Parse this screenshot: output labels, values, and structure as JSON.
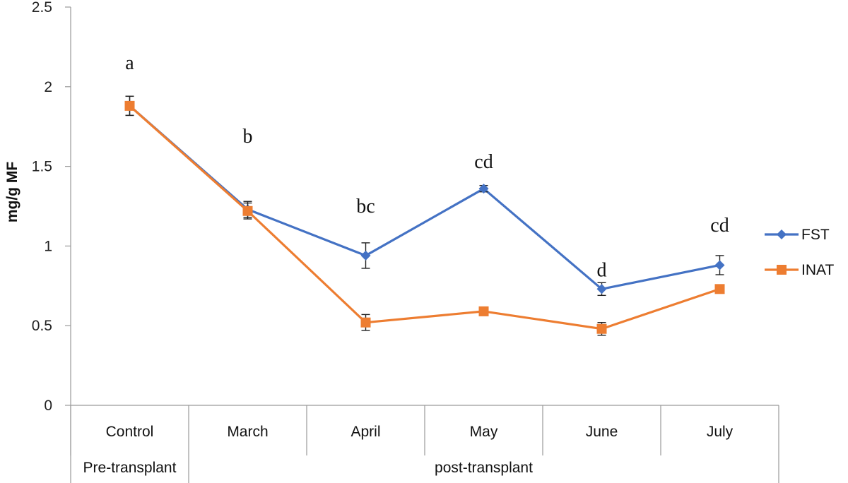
{
  "chart_data": {
    "type": "line",
    "ylabel": "mg/g MF",
    "ylim": [
      0,
      2.5
    ],
    "yticks": [
      0,
      0.5,
      1,
      1.5,
      2,
      2.5
    ],
    "ytick_labels": [
      "0",
      "0.5",
      "1",
      "1.5",
      "2",
      "2.5"
    ],
    "categories": [
      "Control",
      "March",
      "April",
      "May",
      "June",
      "July"
    ],
    "groups": [
      {
        "label": "Pre-transplant",
        "span": [
          0,
          0
        ]
      },
      {
        "label": "post-transplant",
        "span": [
          1,
          5
        ]
      }
    ],
    "series": [
      {
        "name": "FST",
        "color": "#4472C4",
        "marker": "diamond",
        "values": [
          1.88,
          1.23,
          0.94,
          1.36,
          0.73,
          0.88
        ],
        "errors": [
          0.06,
          0.05,
          0.08,
          0.02,
          0.04,
          0.06
        ]
      },
      {
        "name": "INAT",
        "color": "#ED7D31",
        "marker": "square",
        "values": [
          1.88,
          1.22,
          0.52,
          0.59,
          0.48,
          0.73
        ],
        "errors": [
          0.06,
          0.05,
          0.05,
          0.0,
          0.04,
          0.0
        ]
      }
    ],
    "annotations": [
      {
        "category": 0,
        "text": "a",
        "y": 2.11
      },
      {
        "category": 1,
        "text": "b",
        "y": 1.65
      },
      {
        "category": 2,
        "text": "bc",
        "y": 1.21
      },
      {
        "category": 3,
        "text": "cd",
        "y": 1.49
      },
      {
        "category": 4,
        "text": "d",
        "y": 0.81
      },
      {
        "category": 5,
        "text": "cd",
        "y": 1.09
      }
    ],
    "legend": {
      "position": "right"
    },
    "grid": false
  }
}
